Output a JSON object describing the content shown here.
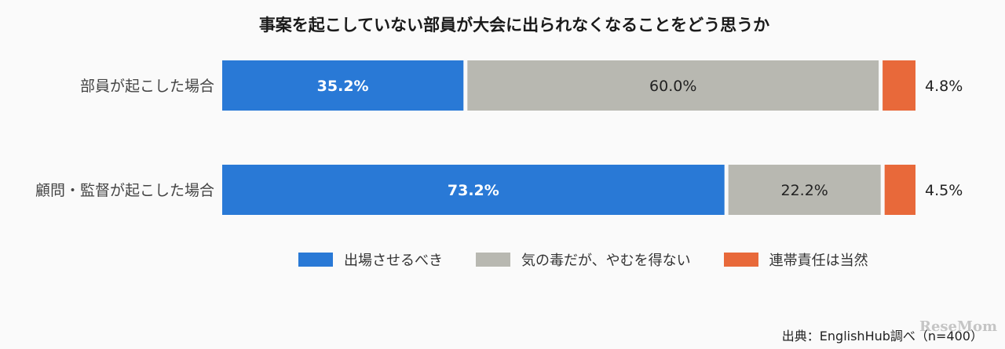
{
  "chart_data": {
    "type": "bar",
    "orientation": "horizontal",
    "stacked": true,
    "percent": true,
    "title": "事案を起こしていない部員が大会に出られなくなることをどう思うか",
    "categories": [
      "部員が起こした場合",
      "顧問・監督が起こした場合"
    ],
    "series": [
      {
        "name": "出場させるべき",
        "values": [
          35.2,
          73.2
        ],
        "labels": [
          "35.2%",
          "73.2%"
        ],
        "color": "#2979d6"
      },
      {
        "name": "気の毒だが、やむを得ない",
        "values": [
          60.0,
          22.2
        ],
        "labels": [
          "60.0%",
          "22.2%"
        ],
        "color": "#b8b8b1"
      },
      {
        "name": "連帯責任は当然",
        "values": [
          4.8,
          4.5
        ],
        "labels": [
          "4.8%",
          "4.5%"
        ],
        "color": "#e8693a"
      }
    ],
    "xlim": [
      0,
      100
    ],
    "legend_position": "bottom",
    "grid": false
  },
  "source": "出典：EnglishHub調べ（n=400）",
  "logo": "ReseMom"
}
